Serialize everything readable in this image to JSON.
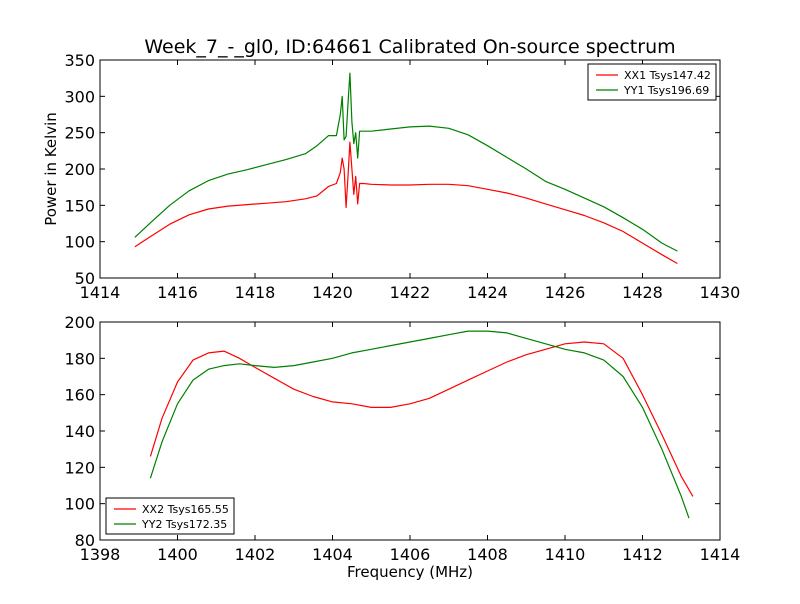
{
  "figure": {
    "title": "Week_7_-_gl0, ID:64661 Calibrated On-source spectrum",
    "xlabel": "Frequency (MHz)",
    "ylabel": "Power in Kelvin"
  },
  "chart_data": [
    {
      "type": "line",
      "title": "Week_7_-_gl0, ID:64661 Calibrated On-source spectrum",
      "xlabel": "",
      "ylabel": "Power in Kelvin",
      "xlim": [
        1414,
        1430
      ],
      "ylim": [
        50,
        350
      ],
      "xticks": [
        1414,
        1416,
        1418,
        1420,
        1422,
        1424,
        1426,
        1428,
        1430
      ],
      "yticks": [
        50,
        100,
        150,
        200,
        250,
        300,
        350
      ],
      "grid": false,
      "legend_position": "top-right",
      "series": [
        {
          "name": "XX1 Tsys147.42",
          "color": "#ff0000",
          "x": [
            1414.9,
            1415.3,
            1415.8,
            1416.3,
            1416.8,
            1417.3,
            1417.8,
            1418.3,
            1418.8,
            1419.3,
            1419.6,
            1419.9,
            1420.1,
            1420.2,
            1420.25,
            1420.3,
            1420.35,
            1420.4,
            1420.45,
            1420.5,
            1420.55,
            1420.6,
            1420.65,
            1420.7,
            1420.8,
            1421.0,
            1421.5,
            1422.0,
            1422.5,
            1423.0,
            1423.5,
            1424.0,
            1424.5,
            1425.0,
            1425.5,
            1426.0,
            1426.5,
            1427.0,
            1427.5,
            1428.0,
            1428.5,
            1428.9
          ],
          "y": [
            93,
            107,
            124,
            137,
            145,
            149,
            151,
            153,
            155,
            159,
            163,
            176,
            180,
            195,
            215,
            200,
            147,
            190,
            237,
            200,
            165,
            190,
            152,
            180,
            180,
            179,
            178,
            178,
            179,
            179,
            177,
            172,
            167,
            160,
            152,
            144,
            136,
            126,
            114,
            98,
            82,
            70
          ]
        },
        {
          "name": "YY1 Tsys196.69",
          "color": "#008000",
          "x": [
            1414.9,
            1415.3,
            1415.8,
            1416.3,
            1416.8,
            1417.3,
            1417.8,
            1418.3,
            1418.8,
            1419.3,
            1419.6,
            1419.9,
            1420.1,
            1420.2,
            1420.25,
            1420.3,
            1420.35,
            1420.4,
            1420.45,
            1420.5,
            1420.55,
            1420.6,
            1420.65,
            1420.7,
            1420.8,
            1421.0,
            1421.5,
            1422.0,
            1422.5,
            1423.0,
            1423.5,
            1424.0,
            1424.5,
            1425.0,
            1425.5,
            1426.0,
            1426.5,
            1427.0,
            1427.5,
            1428.0,
            1428.5,
            1428.9
          ],
          "y": [
            106,
            126,
            150,
            170,
            184,
            193,
            199,
            206,
            213,
            221,
            232,
            246,
            246,
            275,
            300,
            240,
            245,
            290,
            332,
            265,
            235,
            250,
            215,
            252,
            252,
            252,
            255,
            258,
            259,
            256,
            247,
            232,
            216,
            200,
            183,
            172,
            160,
            148,
            133,
            117,
            98,
            87
          ]
        }
      ]
    },
    {
      "type": "line",
      "title": "",
      "xlabel": "Frequency (MHz)",
      "ylabel": "",
      "xlim": [
        1398,
        1414
      ],
      "ylim": [
        80,
        200
      ],
      "xticks": [
        1398,
        1400,
        1402,
        1404,
        1406,
        1408,
        1410,
        1412,
        1414
      ],
      "yticks": [
        80,
        100,
        120,
        140,
        160,
        180,
        200
      ],
      "grid": false,
      "legend_position": "bottom-left",
      "series": [
        {
          "name": "XX2 Tsys165.55",
          "color": "#ff0000",
          "x": [
            1399.3,
            1399.6,
            1400.0,
            1400.4,
            1400.8,
            1401.2,
            1401.6,
            1402.0,
            1402.5,
            1403.0,
            1403.5,
            1404.0,
            1404.5,
            1405.0,
            1405.5,
            1406.0,
            1406.5,
            1407.0,
            1407.5,
            1408.0,
            1408.5,
            1409.0,
            1409.5,
            1410.0,
            1410.5,
            1411.0,
            1411.5,
            1412.0,
            1412.5,
            1413.0,
            1413.3
          ],
          "y": [
            126,
            147,
            167,
            179,
            183,
            184,
            180,
            175,
            169,
            163,
            159,
            156,
            155,
            153,
            153,
            155,
            158,
            163,
            168,
            173,
            178,
            182,
            185,
            188,
            189,
            188,
            180,
            160,
            138,
            115,
            104
          ]
        },
        {
          "name": "YY2 Tsys172.35",
          "color": "#008000",
          "x": [
            1399.3,
            1399.6,
            1400.0,
            1400.4,
            1400.8,
            1401.2,
            1401.6,
            1402.0,
            1402.5,
            1403.0,
            1403.5,
            1404.0,
            1404.5,
            1405.0,
            1405.5,
            1406.0,
            1406.5,
            1407.0,
            1407.5,
            1408.0,
            1408.5,
            1409.0,
            1409.5,
            1410.0,
            1410.5,
            1411.0,
            1411.5,
            1412.0,
            1412.5,
            1413.0,
            1413.2
          ],
          "y": [
            114,
            134,
            155,
            168,
            174,
            176,
            177,
            176,
            175,
            176,
            178,
            180,
            183,
            185,
            187,
            189,
            191,
            193,
            195,
            195,
            194,
            191,
            188,
            185,
            183,
            179,
            170,
            153,
            130,
            104,
            92
          ]
        }
      ]
    }
  ]
}
